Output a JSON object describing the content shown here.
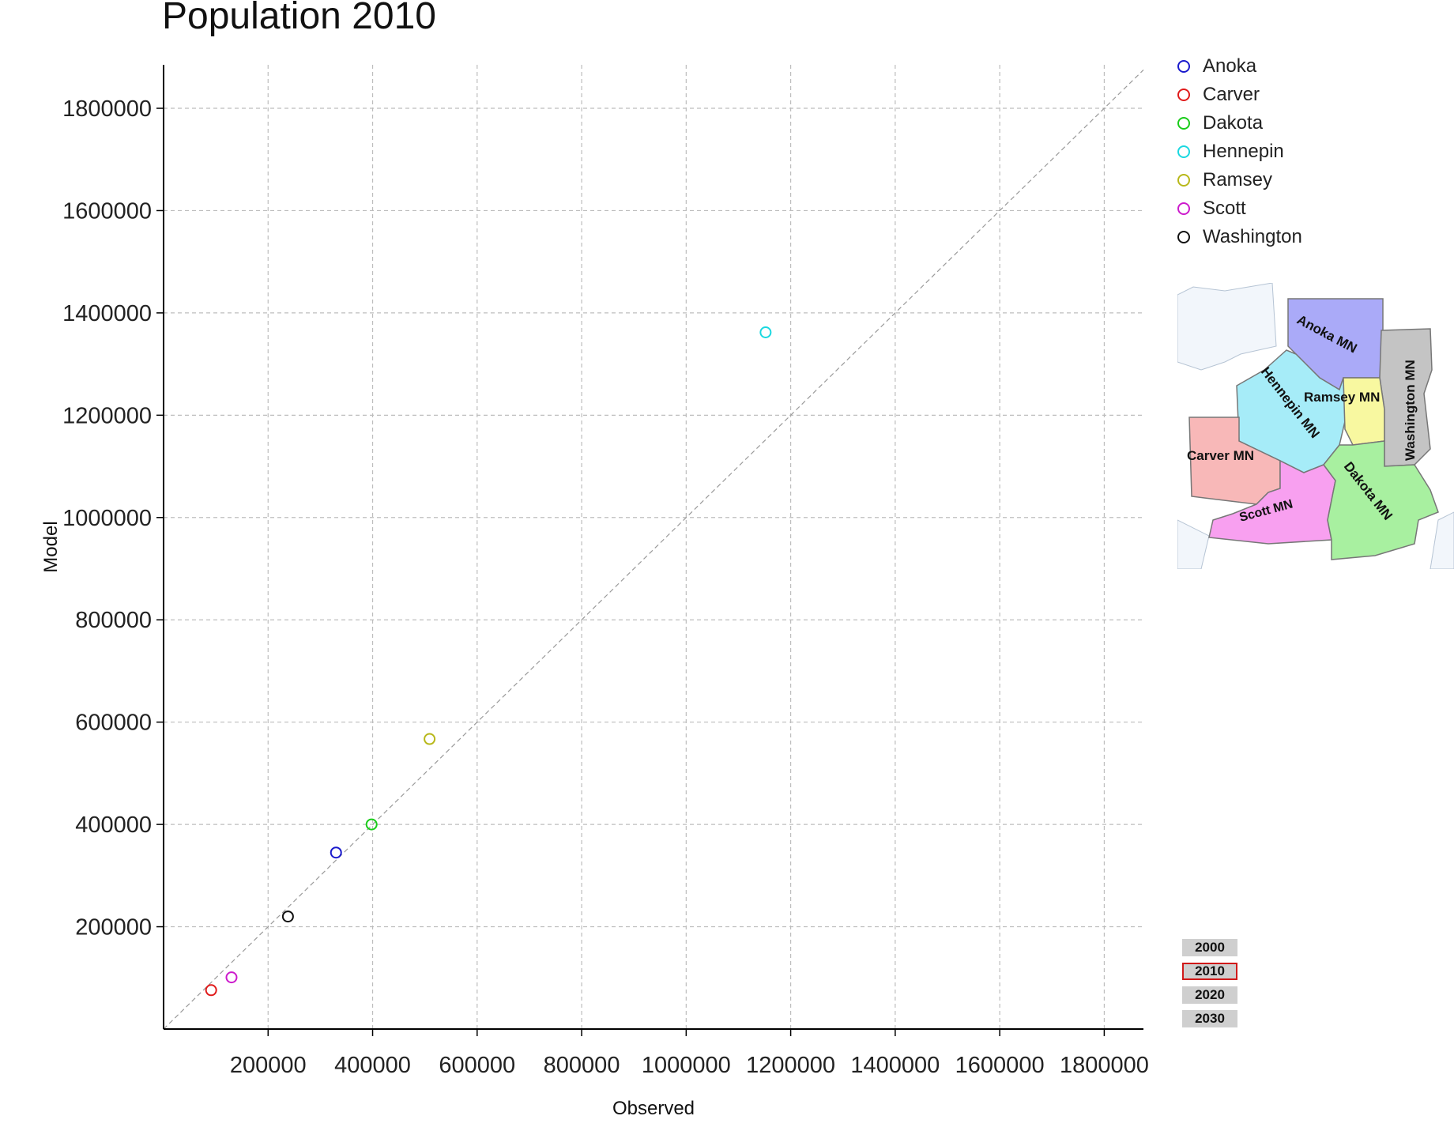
{
  "chart_data": {
    "type": "scatter",
    "title": "Population 2010",
    "xlabel": "Observed",
    "ylabel": "Model",
    "xlim": [
      0,
      1875000
    ],
    "ylim": [
      0,
      1885000
    ],
    "xticks": [
      200000,
      400000,
      600000,
      800000,
      1000000,
      1200000,
      1400000,
      1600000,
      1800000
    ],
    "yticks": [
      200000,
      400000,
      600000,
      800000,
      1000000,
      1200000,
      1400000,
      1600000,
      1800000
    ],
    "grid": true,
    "reference_line": "y = x",
    "legend_position": "top-right",
    "series": [
      {
        "name": "Anoka",
        "color": "#1a1acc",
        "x": 330000,
        "y": 345000
      },
      {
        "name": "Carver",
        "color": "#e01a1a",
        "x": 91000,
        "y": 76000
      },
      {
        "name": "Dakota",
        "color": "#1acc1a",
        "x": 398000,
        "y": 400000
      },
      {
        "name": "Hennepin",
        "color": "#1ad8e0",
        "x": 1152000,
        "y": 1362000
      },
      {
        "name": "Ramsey",
        "color": "#b8b81a",
        "x": 509000,
        "y": 567000
      },
      {
        "name": "Scott",
        "color": "#cc1acc",
        "x": 130000,
        "y": 101000
      },
      {
        "name": "Washington",
        "color": "#111111",
        "x": 238000,
        "y": 220000
      }
    ]
  },
  "map_inset": {
    "counties": [
      {
        "label": "Anoka MN",
        "color": "#aaaaf8"
      },
      {
        "label": "Washington MN",
        "color": "#c4c4c4"
      },
      {
        "label": "Hennepin MN",
        "color": "#a6ecf8"
      },
      {
        "label": "Ramsey MN",
        "color": "#f8f8a0"
      },
      {
        "label": "Carver MN",
        "color": "#f8b8b8"
      },
      {
        "label": "Scott MN",
        "color": "#f8a0f0"
      },
      {
        "label": "Dakota MN",
        "color": "#a8f0a0"
      }
    ]
  },
  "year_selector": {
    "options": [
      "2000",
      "2010",
      "2020",
      "2030"
    ],
    "selected": "2010"
  }
}
